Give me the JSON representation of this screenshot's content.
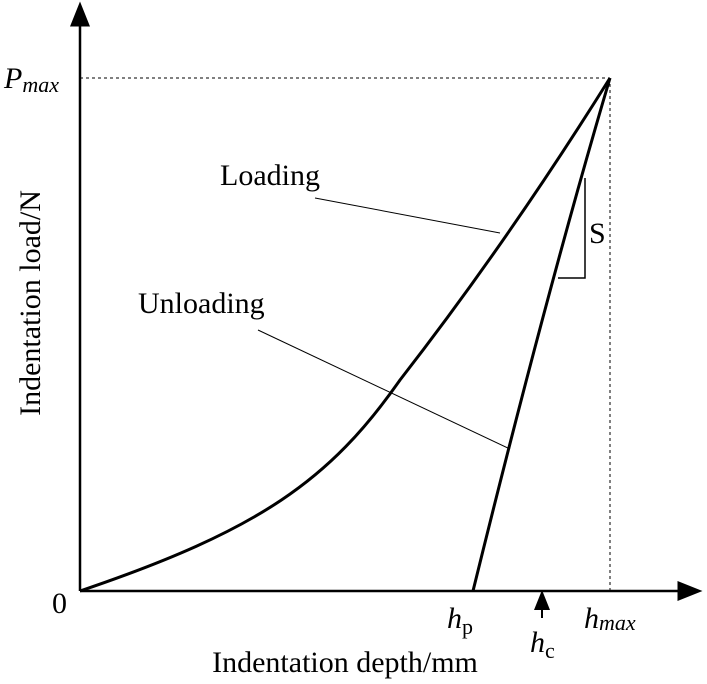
{
  "y_axis": {
    "title": "Indentation load/N",
    "max_label": {
      "symbol": "P",
      "subscript": "max"
    }
  },
  "x_axis": {
    "title": "Indentation depth/mm",
    "origin": "0",
    "marks": [
      {
        "symbol": "h",
        "subscript": "p"
      },
      {
        "symbol": "h",
        "subscript": "c"
      },
      {
        "symbol": "h",
        "subscript": "max"
      }
    ]
  },
  "annotations": {
    "loading": "Loading",
    "unloading": "Unloading",
    "stiffness": "S"
  }
}
